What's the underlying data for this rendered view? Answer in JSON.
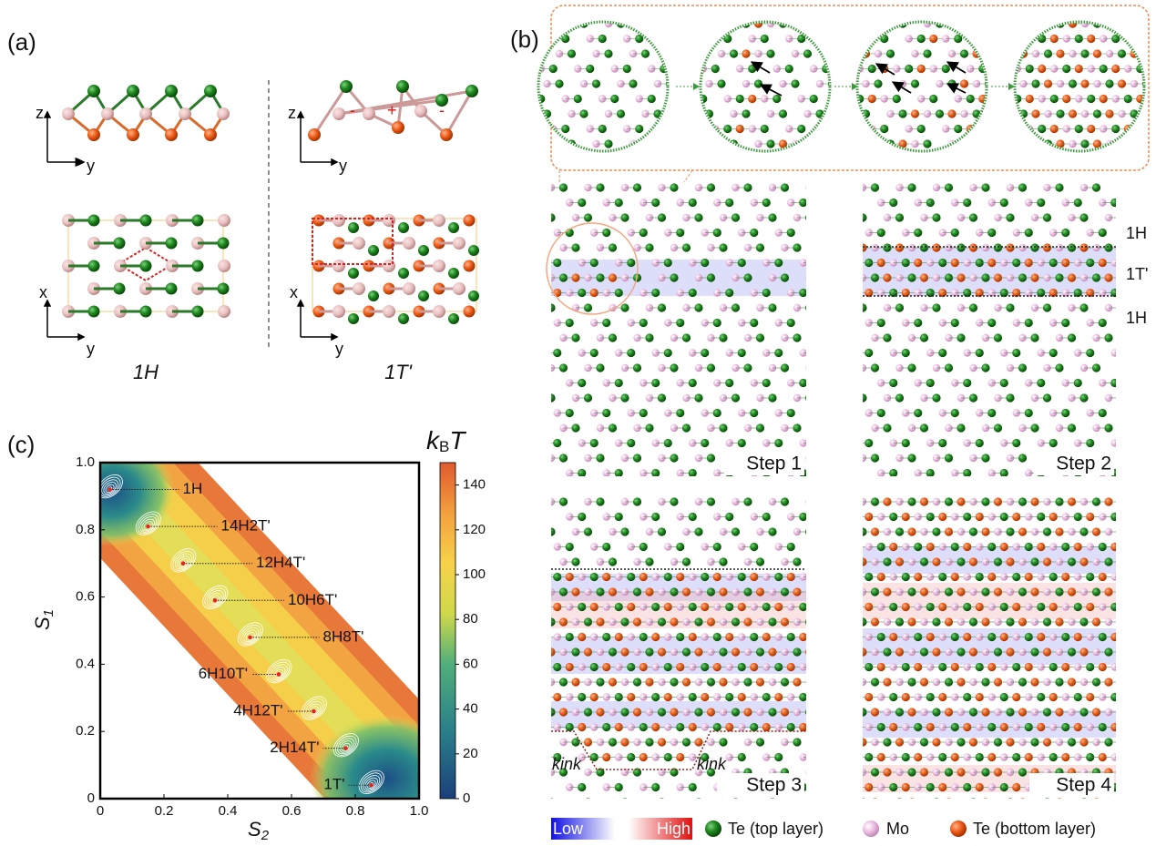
{
  "panel_a": {
    "label": "(a)",
    "side_axes": [
      "z",
      "y",
      "z",
      "y"
    ],
    "top_axes": [
      "x",
      "y",
      "x",
      "y"
    ],
    "signs": [
      "-",
      "+",
      "-"
    ],
    "phases": [
      "1H",
      "1T'"
    ]
  },
  "panel_b": {
    "label": "(b)",
    "regions": [
      "1H",
      "1T'",
      "1H"
    ],
    "steps": [
      "Step 1",
      "Step 2",
      "Step 3",
      "Step 4"
    ],
    "kinks": [
      "kink",
      "kink"
    ],
    "legend": {
      "low": "Low",
      "high": "High",
      "atoms": [
        "Te (top layer)",
        "Mo",
        "Te (bottom layer)"
      ]
    }
  },
  "chart_data": {
    "type": "contour",
    "panel_label": "(c)",
    "xlabel": [
      "S",
      "2"
    ],
    "ylabel": [
      "S",
      "1"
    ],
    "xlim": [
      0,
      1
    ],
    "ylim": [
      0,
      1
    ],
    "xticks": [
      0,
      0.2,
      0.4,
      0.6,
      0.8,
      {
        "value": 1,
        "label": "1.0"
      }
    ],
    "yticks": [
      0,
      0.2,
      0.4,
      0.6,
      0.8,
      {
        "value": 1,
        "label": "1.0"
      }
    ],
    "colorbar": {
      "label": [
        "k",
        "B",
        "T"
      ],
      "lim": [
        0,
        150
      ],
      "ticks": [
        0,
        20,
        40,
        60,
        80,
        100,
        120,
        140
      ]
    },
    "minima": {
      "labels": [
        "1H",
        "14H2T'",
        "12H4T'",
        "10H6T'",
        "8H8T'",
        "6H10T'",
        "4H12T'",
        "2H14T'",
        "1T'"
      ],
      "x": [
        0.03,
        0.15,
        0.26,
        0.36,
        0.47,
        0.56,
        0.67,
        0.77,
        0.85
      ],
      "values": [
        0.92,
        0.81,
        0.7,
        0.59,
        0.48,
        0.37,
        0.26,
        0.15,
        0.04
      ],
      "color": "#e8221a"
    }
  }
}
